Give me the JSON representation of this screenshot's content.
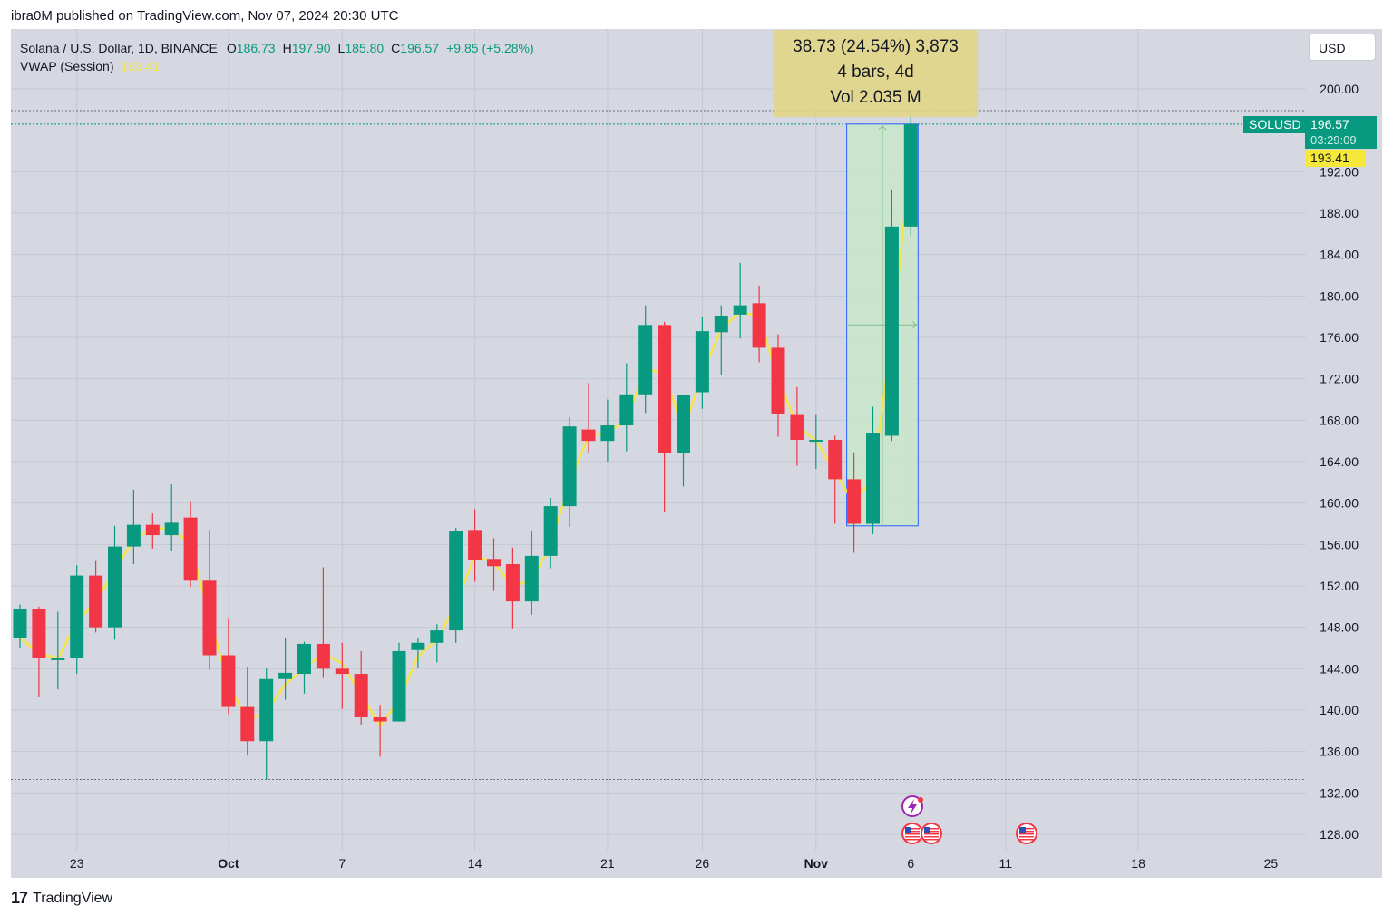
{
  "header": {
    "publish_line": "ibra0M published on TradingView.com, Nov 07, 2024 20:30 UTC"
  },
  "legend": {
    "symbol": "Solana / U.S. Dollar, 1D, BINANCE",
    "o_label": "O",
    "o_value": "186.73",
    "h_label": "H",
    "h_value": "197.90",
    "l_label": "L",
    "l_value": "185.80",
    "c_label": "C",
    "c_value": "196.57",
    "change": "+9.85 (+5.28%)",
    "vwap_label": "VWAP (Session)",
    "vwap_value": "193.41"
  },
  "currency_button": "USD",
  "measure": {
    "line1": "38.73 (24.54%) 3,873",
    "line2": "4 bars, 4d",
    "line3": "Vol 2.035 M"
  },
  "price_tags": {
    "symbol": "SOLUSD",
    "last_price": "196.57",
    "countdown": "03:29:09",
    "vwap": "193.41"
  },
  "footer": {
    "brand": "TradingView",
    "logo_mark": "17"
  },
  "colors": {
    "up": "#089981",
    "down": "#f23645",
    "vwap": "#f5e44a",
    "background": "#d5d8e0",
    "grid": "#c4c8d2",
    "measure_fill": "#c8e6c9",
    "measure_border": "#2962ff"
  },
  "icons": [
    "flash-event-icon",
    "us-flag-icon",
    "us-flag-icon",
    "us-flag-icon"
  ],
  "chart_data": {
    "type": "candlestick",
    "title": "",
    "y_axis": {
      "ylim": [
        126,
        203
      ],
      "ticks": [
        128,
        132,
        136,
        140,
        144,
        148,
        152,
        156,
        160,
        164,
        168,
        172,
        176,
        180,
        184,
        188,
        192,
        200
      ],
      "tick_labels": [
        "128.00",
        "132.00",
        "136.00",
        "140.00",
        "144.00",
        "148.00",
        "152.00",
        "156.00",
        "160.00",
        "164.00",
        "168.00",
        "172.00",
        "176.00",
        "180.00",
        "184.00",
        "188.00",
        "192.00",
        "200.00"
      ],
      "position": "right"
    },
    "x_axis": {
      "tick_labels": [
        {
          "label": "23",
          "date": "2024-09-23"
        },
        {
          "label": "Oct",
          "date": "2024-10-01"
        },
        {
          "label": "7",
          "date": "2024-10-07"
        },
        {
          "label": "14",
          "date": "2024-10-14"
        },
        {
          "label": "21",
          "date": "2024-10-21"
        },
        {
          "label": "26",
          "date": "2024-10-26"
        },
        {
          "label": "Nov",
          "date": "2024-11-01"
        },
        {
          "label": "6",
          "date": "2024-11-06"
        },
        {
          "label": "11",
          "date": "2024-11-11"
        },
        {
          "label": "18",
          "date": "2024-11-18"
        },
        {
          "label": "25",
          "date": "2024-11-25"
        }
      ]
    },
    "grid": true,
    "candles": [
      {
        "date": "2024-09-20",
        "o": 147.0,
        "h": 150.2,
        "l": 146.0,
        "c": 149.8
      },
      {
        "date": "2024-09-21",
        "o": 149.8,
        "h": 150.0,
        "l": 141.3,
        "c": 145.0
      },
      {
        "date": "2024-09-22",
        "o": 145.0,
        "h": 149.5,
        "l": 142.0,
        "c": 145.0
      },
      {
        "date": "2024-09-23",
        "o": 145.0,
        "h": 154.0,
        "l": 143.5,
        "c": 153.0
      },
      {
        "date": "2024-09-24",
        "o": 153.0,
        "h": 154.4,
        "l": 147.5,
        "c": 148.0
      },
      {
        "date": "2024-09-25",
        "o": 148.0,
        "h": 157.8,
        "l": 146.8,
        "c": 155.8
      },
      {
        "date": "2024-09-26",
        "o": 155.8,
        "h": 161.3,
        "l": 154.1,
        "c": 157.9
      },
      {
        "date": "2024-09-27",
        "o": 157.9,
        "h": 159.0,
        "l": 155.6,
        "c": 156.9
      },
      {
        "date": "2024-09-28",
        "o": 156.9,
        "h": 161.8,
        "l": 155.4,
        "c": 158.1
      },
      {
        "date": "2024-09-29",
        "o": 158.6,
        "h": 160.2,
        "l": 151.9,
        "c": 152.5
      },
      {
        "date": "2024-09-30",
        "o": 152.5,
        "h": 157.4,
        "l": 143.9,
        "c": 145.3
      },
      {
        "date": "2024-10-01",
        "o": 145.3,
        "h": 148.9,
        "l": 139.6,
        "c": 140.3
      },
      {
        "date": "2024-10-02",
        "o": 140.3,
        "h": 144.2,
        "l": 135.6,
        "c": 137.0
      },
      {
        "date": "2024-10-03",
        "o": 137.0,
        "h": 144.0,
        "l": 133.3,
        "c": 143.0
      },
      {
        "date": "2024-10-04",
        "o": 143.0,
        "h": 147.0,
        "l": 141.0,
        "c": 143.6
      },
      {
        "date": "2024-10-05",
        "o": 143.5,
        "h": 146.6,
        "l": 141.6,
        "c": 146.4
      },
      {
        "date": "2024-10-06",
        "o": 146.4,
        "h": 153.8,
        "l": 143.1,
        "c": 144.0
      },
      {
        "date": "2024-10-07",
        "o": 144.0,
        "h": 146.5,
        "l": 140.1,
        "c": 143.5
      },
      {
        "date": "2024-10-08",
        "o": 143.5,
        "h": 145.7,
        "l": 138.6,
        "c": 139.3
      },
      {
        "date": "2024-10-09",
        "o": 139.3,
        "h": 140.5,
        "l": 135.5,
        "c": 138.9
      },
      {
        "date": "2024-10-10",
        "o": 138.9,
        "h": 146.5,
        "l": 138.9,
        "c": 145.7
      },
      {
        "date": "2024-10-11",
        "o": 145.8,
        "h": 147.0,
        "l": 144.1,
        "c": 146.5
      },
      {
        "date": "2024-10-12",
        "o": 146.5,
        "h": 148.3,
        "l": 144.6,
        "c": 147.7
      },
      {
        "date": "2024-10-13",
        "o": 147.7,
        "h": 157.6,
        "l": 146.5,
        "c": 157.3
      },
      {
        "date": "2024-10-14",
        "o": 157.4,
        "h": 159.4,
        "l": 152.4,
        "c": 154.5
      },
      {
        "date": "2024-10-15",
        "o": 154.6,
        "h": 156.6,
        "l": 151.5,
        "c": 153.9
      },
      {
        "date": "2024-10-16",
        "o": 154.1,
        "h": 155.7,
        "l": 147.9,
        "c": 150.5
      },
      {
        "date": "2024-10-17",
        "o": 150.5,
        "h": 157.3,
        "l": 149.2,
        "c": 154.9
      },
      {
        "date": "2024-10-18",
        "o": 154.9,
        "h": 160.5,
        "l": 153.7,
        "c": 159.7
      },
      {
        "date": "2024-10-19",
        "o": 159.7,
        "h": 168.3,
        "l": 157.7,
        "c": 167.4
      },
      {
        "date": "2024-10-20",
        "o": 167.1,
        "h": 171.6,
        "l": 164.8,
        "c": 166.0
      },
      {
        "date": "2024-10-21",
        "o": 166.0,
        "h": 170.0,
        "l": 164.0,
        "c": 167.5
      },
      {
        "date": "2024-10-22",
        "o": 167.5,
        "h": 173.5,
        "l": 165.0,
        "c": 170.5
      },
      {
        "date": "2024-10-23",
        "o": 170.5,
        "h": 179.1,
        "l": 168.7,
        "c": 177.2
      },
      {
        "date": "2024-10-24",
        "o": 177.2,
        "h": 177.5,
        "l": 159.1,
        "c": 164.8
      },
      {
        "date": "2024-10-25",
        "o": 164.8,
        "h": 170.4,
        "l": 161.6,
        "c": 170.4
      },
      {
        "date": "2024-10-26",
        "o": 170.7,
        "h": 178.0,
        "l": 169.1,
        "c": 176.6
      },
      {
        "date": "2024-10-27",
        "o": 176.5,
        "h": 179.1,
        "l": 172.4,
        "c": 178.1
      },
      {
        "date": "2024-10-28",
        "o": 178.2,
        "h": 183.2,
        "l": 175.9,
        "c": 179.1
      },
      {
        "date": "2024-10-29",
        "o": 179.3,
        "h": 181.0,
        "l": 173.6,
        "c": 175.0
      },
      {
        "date": "2024-10-30",
        "o": 175.0,
        "h": 176.3,
        "l": 166.4,
        "c": 168.6
      },
      {
        "date": "2024-10-31",
        "o": 168.5,
        "h": 171.2,
        "l": 163.6,
        "c": 166.1
      },
      {
        "date": "2024-11-01",
        "o": 166.1,
        "h": 168.5,
        "l": 163.3,
        "c": 166.1
      },
      {
        "date": "2024-11-02",
        "o": 166.1,
        "h": 166.5,
        "l": 158.0,
        "c": 162.3
      },
      {
        "date": "2024-11-03",
        "o": 162.3,
        "h": 164.9,
        "l": 155.2,
        "c": 158.0
      },
      {
        "date": "2024-11-04",
        "o": 158.0,
        "h": 169.3,
        "l": 157.0,
        "c": 166.8
      },
      {
        "date": "2024-11-05",
        "o": 166.5,
        "h": 190.3,
        "l": 166.0,
        "c": 186.7
      },
      {
        "date": "2024-11-06",
        "o": 186.7,
        "h": 197.9,
        "l": 185.8,
        "c": 196.6
      }
    ],
    "vwap_series": [
      147.0,
      145.5,
      145.0,
      148.5,
      150.5,
      153.5,
      156.5,
      157.5,
      157.6,
      156.0,
      149.0,
      142.5,
      139.0,
      139.8,
      142.5,
      144.0,
      145.5,
      144.5,
      141.5,
      138.5,
      141.0,
      145.2,
      146.8,
      150.2,
      155.0,
      154.2,
      152.0,
      152.5,
      156.0,
      162.0,
      166.5,
      166.8,
      168.0,
      173.0,
      172.5,
      167.0,
      172.5,
      176.8,
      178.5,
      178.0,
      172.0,
      167.5,
      166.0,
      163.0,
      160.0,
      162.5,
      176.0,
      193.4
    ],
    "measure_range": {
      "from": "2024-11-03",
      "to": "2024-11-06",
      "low": 157.8,
      "high": 196.6
    }
  }
}
